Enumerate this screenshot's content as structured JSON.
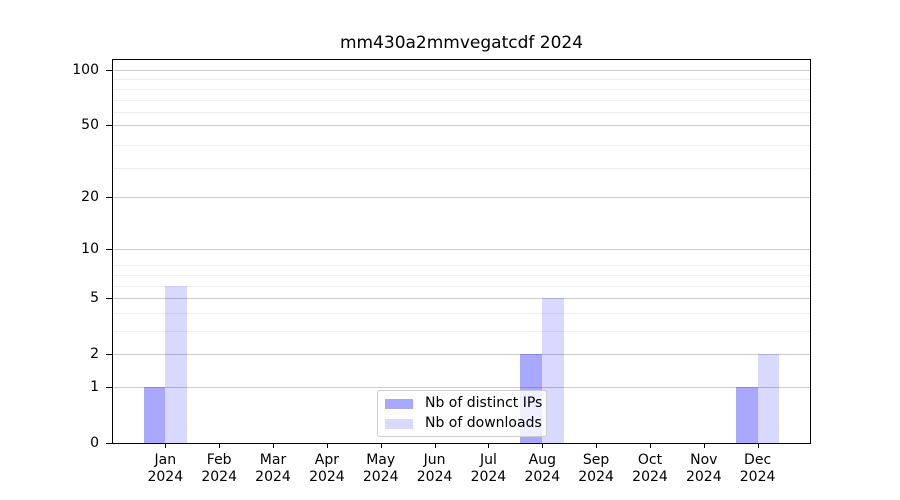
{
  "title": "mm430a2mmvegatcdf 2024",
  "y_axis": {
    "tick_labels": [
      "0",
      "1",
      "2",
      "5",
      "10",
      "20",
      "50",
      "100"
    ]
  },
  "x_axis": {
    "months": [
      "Jan",
      "Feb",
      "Mar",
      "Apr",
      "May",
      "Jun",
      "Jul",
      "Aug",
      "Sep",
      "Oct",
      "Nov",
      "Dec"
    ],
    "year": "2024"
  },
  "legend": {
    "items": [
      {
        "label": "Nb of distinct IPs",
        "color": "rgba(0,0,255,0.34)"
      },
      {
        "label": "Nb of downloads",
        "color": "rgba(0,0,255,0.15)"
      }
    ]
  },
  "colors": {
    "bar_distinct_ips": "rgba(0,0,255,0.34)",
    "bar_downloads": "rgba(0,0,255,0.15)",
    "grid_major": "#cccccc",
    "grid_minor": "#eeeeee",
    "axis_line": "#000000",
    "legend_bg": "rgba(255,255,255,0.8)",
    "legend_border": "#cccccc",
    "text": "#000000"
  },
  "chart_data": {
    "type": "bar",
    "title": "mm430a2mmvegatcdf 2024",
    "categories": [
      "Jan 2024",
      "Feb 2024",
      "Mar 2024",
      "Apr 2024",
      "May 2024",
      "Jun 2024",
      "Jul 2024",
      "Aug 2024",
      "Sep 2024",
      "Oct 2024",
      "Nov 2024",
      "Dec 2024"
    ],
    "series": [
      {
        "name": "Nb of distinct IPs",
        "values": [
          1,
          0,
          0,
          0,
          0,
          0,
          0,
          2,
          0,
          0,
          0,
          1
        ]
      },
      {
        "name": "Nb of downloads",
        "values": [
          6,
          0,
          0,
          0,
          0,
          0,
          0,
          5,
          0,
          0,
          0,
          2
        ]
      }
    ],
    "xlabel": "",
    "ylabel": "",
    "yscale": "log10(1+x)",
    "ytick_values": [
      0,
      1,
      2,
      5,
      10,
      20,
      50,
      100
    ],
    "ylim": [
      0,
      114
    ],
    "grid": "horizontal major and minor gridlines",
    "legend_position": "lower center inside plot"
  }
}
